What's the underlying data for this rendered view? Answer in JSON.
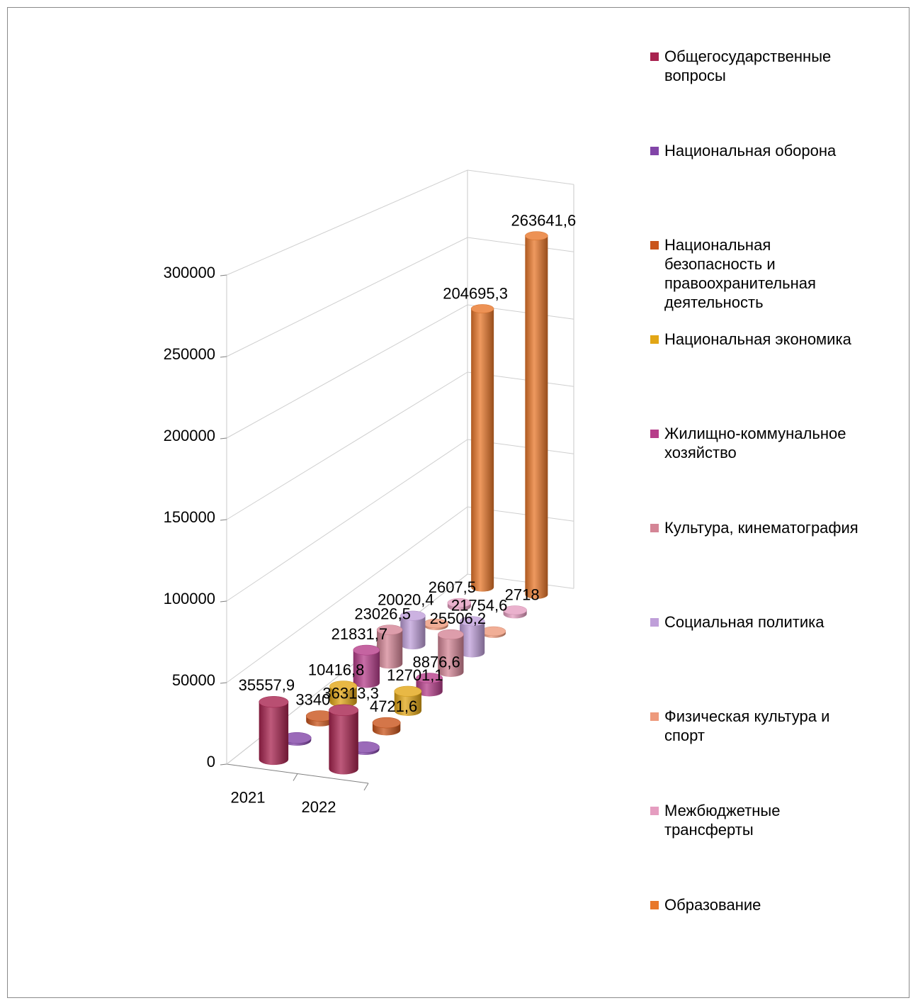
{
  "chart_data": {
    "type": "cylinder3d",
    "categories": [
      "2021",
      "2022"
    ],
    "ylim": [
      0,
      300000
    ],
    "yticks": [
      0,
      50000,
      100000,
      150000,
      200000,
      250000,
      300000
    ],
    "grid": true,
    "legend": "right",
    "series": [
      {
        "name": "Общегосударственные вопросы",
        "color": "#a8234f",
        "values": [
          35557.9,
          36313.3
        ],
        "value_labels": [
          "35557,9",
          "36313,3"
        ]
      },
      {
        "name": "Национальная оборона",
        "color": "#8245a8",
        "values": [
          1500,
          1500
        ]
      },
      {
        "name": "Национальная безопасность и правоохранительная деятельность",
        "color": "#c9541b",
        "values": [
          3340,
          4721.6
        ],
        "value_labels": [
          "3340",
          "4721,6"
        ]
      },
      {
        "name": "Национальная экономика",
        "color": "#e2a616",
        "values": [
          10416.8,
          12701.1
        ],
        "value_labels": [
          "10416,8",
          "12701,1"
        ]
      },
      {
        "name": "Жилищно-коммунальное хозяйство",
        "color": "#b63d8a",
        "values": [
          21831.7,
          8876.6
        ],
        "value_labels": [
          "21831,7",
          "8876,6"
        ]
      },
      {
        "name": "Культура, кинематография",
        "color": "#d48596",
        "values": [
          23026.5,
          25506.2
        ],
        "value_labels": [
          "23026,5",
          "25506,2"
        ]
      },
      {
        "name": "Социальная политика",
        "color": "#bf9fd9",
        "values": [
          20020.4,
          21754.6
        ],
        "value_labels": [
          "20020,4",
          "21754,6"
        ]
      },
      {
        "name": "Физическая культура и спорт",
        "color": "#ee9a7c",
        "values": [
          1500,
          1500
        ]
      },
      {
        "name": "Межбюджетные трансферты",
        "color": "#e59dc0",
        "values": [
          2607.5,
          2718
        ],
        "value_labels": [
          "2607,5",
          "2718"
        ]
      },
      {
        "name": "Образование",
        "color": "#e8772a",
        "values": [
          204695.3,
          263641.6
        ],
        "value_labels": [
          "204695,3",
          "263641,6"
        ]
      }
    ]
  }
}
